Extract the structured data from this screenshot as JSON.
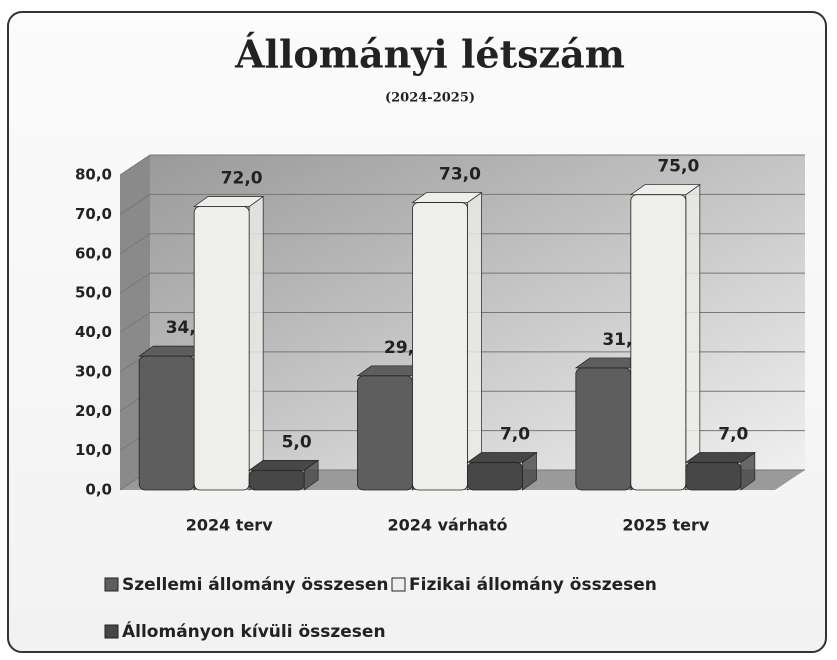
{
  "chart_data": {
    "type": "bar3d",
    "title": "Állományi létszám",
    "subtitle": "(2024-2025)",
    "categories": [
      "2024 terv",
      "2024 várható",
      "2025 terv"
    ],
    "series": [
      {
        "name": "Szellemi állomány összesen",
        "color": "#5e5e5e",
        "values": [
          34,
          29,
          31
        ],
        "value_labels": [
          "34,0",
          "29,0",
          "31,0"
        ]
      },
      {
        "name": "Fizikai állomány összesen",
        "color": "#eeeeea",
        "values": [
          72,
          73,
          75
        ],
        "value_labels": [
          "72,0",
          "73,0",
          "75,0"
        ]
      },
      {
        "name": "Állományon kívüli összesen",
        "color": "#474747",
        "values": [
          5,
          7,
          7
        ],
        "value_labels": [
          "5,0",
          "7,0",
          "7,0"
        ]
      }
    ],
    "ylim": [
      0,
      80
    ],
    "yticks": [
      {
        "value": 0,
        "label": "0,0"
      },
      {
        "value": 10,
        "label": "10,0"
      },
      {
        "value": 20,
        "label": "20,0"
      },
      {
        "value": 30,
        "label": "30,0"
      },
      {
        "value": 40,
        "label": "40,0"
      },
      {
        "value": 50,
        "label": "50,0"
      },
      {
        "value": 60,
        "label": "60,0"
      },
      {
        "value": 70,
        "label": "70,0"
      },
      {
        "value": 80,
        "label": "80,0"
      }
    ],
    "grid": true
  }
}
